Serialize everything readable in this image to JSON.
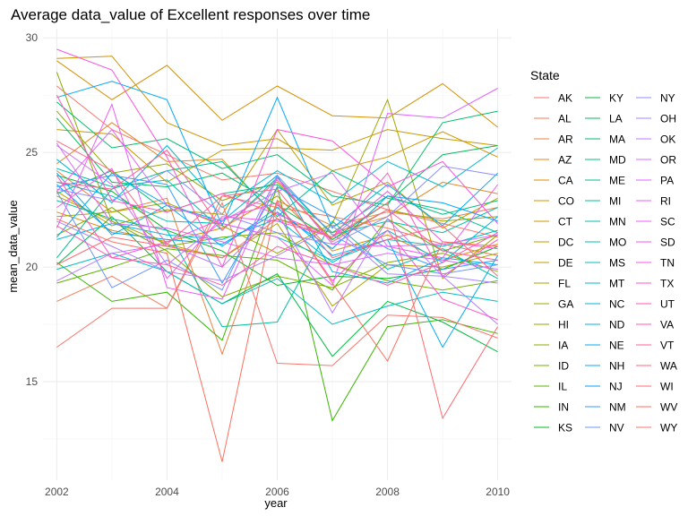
{
  "chart_data": {
    "type": "line",
    "title": "Average data_value of Excellent responses over time",
    "xlabel": "year",
    "ylabel": "mean_data_value",
    "xlim": [
      2001.75,
      2010.25
    ],
    "ylim": [
      10.7,
      30.4
    ],
    "x_ticks": [
      2002,
      2004,
      2006,
      2008,
      2010
    ],
    "y_ticks": [
      15,
      20,
      25,
      30
    ],
    "grid": true,
    "legend_title": "State",
    "legend_position": "right",
    "x": [
      2002,
      2003,
      2004,
      2005,
      2006,
      2007,
      2008,
      2009,
      2010
    ],
    "series": [
      {
        "name": "AK",
        "color": "#F8766D",
        "values": [
          27.9,
          26.0,
          24.9,
          23.8,
          24.1,
          23.3,
          22.5,
          21.9,
          21.3
        ]
      },
      {
        "name": "AL",
        "color": "#F37B59",
        "values": [
          18.5,
          19.6,
          18.2,
          23.1,
          22.6,
          22.2,
          21.7,
          21.0,
          20.5
        ]
      },
      {
        "name": "AR",
        "color": "#ED8141",
        "values": [
          24.2,
          22.4,
          23.0,
          16.2,
          22.9,
          21.8,
          22.4,
          22.1,
          22.6
        ]
      },
      {
        "name": "AZ",
        "color": "#E7861B",
        "values": [
          24.5,
          26.3,
          24.6,
          24.7,
          22.1,
          21.5,
          22.2,
          23.7,
          23.2
        ]
      },
      {
        "name": "CA",
        "color": "#DF8C00",
        "values": [
          22.4,
          21.6,
          21.1,
          21.7,
          23.1,
          20.7,
          21.4,
          20.3,
          21.0
        ]
      },
      {
        "name": "CO",
        "color": "#D89000",
        "values": [
          29.0,
          27.3,
          28.8,
          26.4,
          27.9,
          26.6,
          26.5,
          28.0,
          26.1
        ]
      },
      {
        "name": "CT",
        "color": "#CF9400",
        "values": [
          29.1,
          29.2,
          26.3,
          25.3,
          25.6,
          24.2,
          24.8,
          25.9,
          24.8
        ]
      },
      {
        "name": "DC",
        "color": "#C59900",
        "values": [
          26.0,
          25.8,
          23.7,
          25.1,
          25.2,
          25.1,
          26.0,
          25.6,
          25.3
        ]
      },
      {
        "name": "DE",
        "color": "#BB9D00",
        "values": [
          23.3,
          21.8,
          22.5,
          22.3,
          26.0,
          22.7,
          23.7,
          21.7,
          23.0
        ]
      },
      {
        "name": "FL",
        "color": "#AFA100",
        "values": [
          23.1,
          22.0,
          21.0,
          20.4,
          21.9,
          18.3,
          20.1,
          20.0,
          20.6
        ]
      },
      {
        "name": "GA",
        "color": "#A3A500",
        "values": [
          22.2,
          22.4,
          22.8,
          21.8,
          20.6,
          21.9,
          27.3,
          19.5,
          21.4
        ]
      },
      {
        "name": "HI",
        "color": "#95A900",
        "values": [
          26.8,
          24.1,
          24.5,
          22.9,
          23.7,
          21.2,
          22.5,
          22.0,
          22.2
        ]
      },
      {
        "name": "IA",
        "color": "#85AD00",
        "values": [
          28.5,
          22.0,
          20.7,
          18.7,
          19.6,
          19.1,
          20.2,
          20.6,
          19.8
        ]
      },
      {
        "name": "ID",
        "color": "#72B000",
        "values": [
          21.4,
          22.6,
          20.9,
          21.3,
          21.5,
          20.1,
          19.4,
          19.0,
          19.4
        ]
      },
      {
        "name": "IL",
        "color": "#5BB300",
        "values": [
          19.3,
          20.0,
          20.8,
          20.5,
          20.3,
          19.0,
          22.1,
          20.7,
          21.4
        ]
      },
      {
        "name": "IN",
        "color": "#39B600",
        "values": [
          20.2,
          18.5,
          18.9,
          16.8,
          23.5,
          13.3,
          17.4,
          17.7,
          17.1
        ]
      },
      {
        "name": "KS",
        "color": "#00B81F",
        "values": [
          24.0,
          23.3,
          21.6,
          20.7,
          19.2,
          19.6,
          19.5,
          19.9,
          20.9
        ]
      },
      {
        "name": "KY",
        "color": "#00BA42",
        "values": [
          20.1,
          22.2,
          19.8,
          18.4,
          19.7,
          16.1,
          18.5,
          17.6,
          16.3
        ]
      },
      {
        "name": "LA",
        "color": "#00BC59",
        "values": [
          26.5,
          23.7,
          23.5,
          24.1,
          22.7,
          21.2,
          22.8,
          24.9,
          25.3
        ]
      },
      {
        "name": "MA",
        "color": "#00BE6C",
        "values": [
          27.2,
          25.2,
          25.6,
          24.3,
          24.9,
          23.1,
          22.7,
          26.3,
          26.8
        ]
      },
      {
        "name": "MD",
        "color": "#00BF7D",
        "values": [
          23.2,
          24.2,
          22.4,
          23.2,
          23.6,
          21.5,
          23.1,
          22.3,
          22.9
        ]
      },
      {
        "name": "ME",
        "color": "#00C08D",
        "values": [
          20.4,
          23.4,
          24.2,
          24.6,
          22.2,
          24.2,
          23.0,
          22.5,
          21.5
        ]
      },
      {
        "name": "MI",
        "color": "#00C19C",
        "values": [
          22.9,
          22.1,
          21.6,
          17.4,
          17.6,
          22.0,
          19.9,
          20.8,
          19.5
        ]
      },
      {
        "name": "MN",
        "color": "#00C0AB",
        "values": [
          24.3,
          23.5,
          23.8,
          21.6,
          23.9,
          21.4,
          22.0,
          21.5,
          22.6
        ]
      },
      {
        "name": "MO",
        "color": "#00BFB9",
        "values": [
          23.7,
          23.1,
          22.0,
          21.9,
          21.3,
          20.3,
          21.2,
          20.9,
          21.6
        ]
      },
      {
        "name": "MS",
        "color": "#00BCC6",
        "values": [
          19.9,
          20.6,
          19.8,
          18.4,
          19.5,
          17.5,
          18.3,
          18.9,
          18.5
        ]
      },
      {
        "name": "MT",
        "color": "#00BAD3",
        "values": [
          24.7,
          22.8,
          25.3,
          22.6,
          24.2,
          22.8,
          24.6,
          23.5,
          25.2
        ]
      },
      {
        "name": "NC",
        "color": "#00B6DF",
        "values": [
          21.2,
          21.9,
          21.4,
          21.2,
          22.1,
          20.2,
          21.6,
          20.2,
          22.2
        ]
      },
      {
        "name": "ND",
        "color": "#00B2EA",
        "values": [
          24.1,
          21.4,
          22.7,
          22.0,
          24.0,
          19.8,
          19.3,
          20.4,
          20.1
        ]
      },
      {
        "name": "NE",
        "color": "#00ADF4",
        "values": [
          21.3,
          24.1,
          22.7,
          20.9,
          22.6,
          20.5,
          21.2,
          16.5,
          20.5
        ]
      },
      {
        "name": "NH",
        "color": "#00A8FE",
        "values": [
          27.4,
          28.1,
          27.3,
          21.8,
          27.4,
          21.7,
          23.6,
          21.8,
          24.1
        ]
      },
      {
        "name": "NJ",
        "color": "#00A1FF",
        "values": [
          23.6,
          21.5,
          21.2,
          21.0,
          22.4,
          20.8,
          23.1,
          22.8,
          22.0
        ]
      },
      {
        "name": "NM",
        "color": "#359BFF",
        "values": [
          23.5,
          24.0,
          23.6,
          19.3,
          23.5,
          22.2,
          20.8,
          19.9,
          20.3
        ]
      },
      {
        "name": "NV",
        "color": "#6E94FF",
        "values": [
          23.3,
          19.1,
          20.3,
          19.0,
          24.0,
          21.4,
          20.1,
          19.7,
          20.1
        ]
      },
      {
        "name": "NY",
        "color": "#8F8CFF",
        "values": [
          23.4,
          22.9,
          24.2,
          22.3,
          21.5,
          21.0,
          22.2,
          24.4,
          24.0
        ]
      },
      {
        "name": "OH",
        "color": "#A883FF",
        "values": [
          22.0,
          20.9,
          19.8,
          19.4,
          20.5,
          21.8,
          19.7,
          19.6,
          19.3
        ]
      },
      {
        "name": "OK",
        "color": "#BC7AFF",
        "values": [
          19.4,
          20.6,
          21.0,
          20.0,
          22.4,
          18.0,
          22.1,
          19.6,
          17.5
        ]
      },
      {
        "name": "OR",
        "color": "#CC71FF",
        "values": [
          25.3,
          23.6,
          20.1,
          22.0,
          23.3,
          24.1,
          20.9,
          21.0,
          21.4
        ]
      },
      {
        "name": "PA",
        "color": "#D969FF",
        "values": [
          25.4,
          21.9,
          21.7,
          21.1,
          20.4,
          20.1,
          20.6,
          20.3,
          19.9
        ]
      },
      {
        "name": "RI",
        "color": "#E461FF",
        "values": [
          23.3,
          26.0,
          22.7,
          21.9,
          21.3,
          19.2,
          26.7,
          26.5,
          27.8
        ]
      },
      {
        "name": "SC",
        "color": "#EE5BF6",
        "values": [
          21.7,
          27.1,
          19.1,
          18.6,
          23.9,
          21.0,
          20.9,
          20.4,
          23.6
        ]
      },
      {
        "name": "SD",
        "color": "#F557EA",
        "values": [
          22.6,
          24.3,
          19.5,
          22.2,
          22.0,
          21.3,
          23.3,
          21.1,
          20.8
        ]
      },
      {
        "name": "TN",
        "color": "#FB55DC",
        "values": [
          29.5,
          28.6,
          24.8,
          20.0,
          26.0,
          25.5,
          23.5,
          24.6,
          21.9
        ]
      },
      {
        "name": "TX",
        "color": "#FE55CD",
        "values": [
          24.0,
          20.4,
          21.1,
          22.1,
          22.8,
          19.4,
          21.6,
          18.6,
          17.7
        ]
      },
      {
        "name": "UT",
        "color": "#FF56BD",
        "values": [
          27.5,
          22.9,
          22.4,
          23.2,
          22.3,
          21.3,
          24.1,
          19.6,
          21.2
        ]
      },
      {
        "name": "VA",
        "color": "#FF5AAC",
        "values": [
          21.8,
          20.4,
          20.1,
          19.2,
          20.9,
          20.1,
          19.2,
          20.2,
          21.5
        ]
      },
      {
        "name": "VT",
        "color": "#FF5F9A",
        "values": [
          23.7,
          23.4,
          25.1,
          21.6,
          23.8,
          21.1,
          22.5,
          20.7,
          20.3
        ]
      },
      {
        "name": "WA",
        "color": "#FF6586",
        "values": [
          25.5,
          24.2,
          21.0,
          23.1,
          23.4,
          20.4,
          21.2,
          21.8,
          19.6
        ]
      },
      {
        "name": "WI",
        "color": "#FF6A71",
        "values": [
          20.1,
          21.3,
          20.9,
          20.4,
          22.1,
          21.3,
          22.8,
          13.4,
          17.4
        ]
      },
      {
        "name": "WV",
        "color": "#FD6F5E",
        "values": [
          22.1,
          21.1,
          20.6,
          11.5,
          22.9,
          19.3,
          15.9,
          21.1,
          20.9
        ]
      },
      {
        "name": "WY",
        "color": "#F8766D",
        "values": [
          16.5,
          18.2,
          18.2,
          22.8,
          15.8,
          15.7,
          17.9,
          17.8,
          16.9
        ]
      }
    ]
  }
}
